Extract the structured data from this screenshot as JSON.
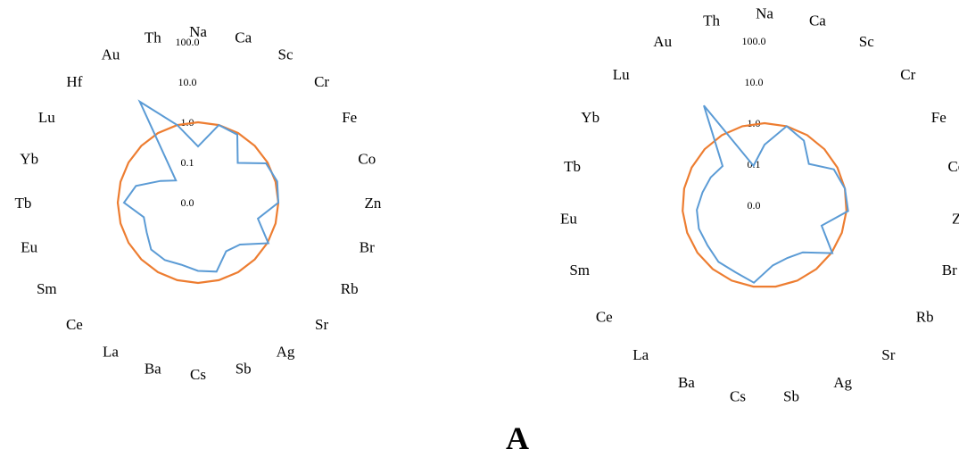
{
  "panel_label": "A",
  "colors": {
    "series_sample": "#5B9BD5",
    "series_reference": "#ED7D31"
  },
  "chart_data": [
    {
      "type": "radar",
      "scale": "log",
      "rlim": [
        0.01,
        100.0
      ],
      "tick_labels": [
        "0.0",
        "0.1",
        "1.0",
        "10.0",
        "100.0"
      ],
      "tick_values": [
        0.01,
        0.1,
        1.0,
        10.0,
        100.0
      ],
      "categories": [
        "Na",
        "Ca",
        "Sc",
        "Cr",
        "Fe",
        "Co",
        "Zn",
        "Br",
        "Rb",
        "Sr",
        "Ag",
        "Sb",
        "Cs",
        "Ba",
        "La",
        "Ce",
        "Sm",
        "Eu",
        "Tb",
        "Yb",
        "Lu",
        "Hf",
        "Au",
        "Th"
      ],
      "series": [
        {
          "values": [
            0.25,
            1.0,
            0.9,
            0.25,
            0.9,
            1.1,
            1.0,
            0.35,
            1.05,
            0.3,
            0.25,
            0.6,
            0.5,
            0.4,
            0.45,
            0.45,
            0.3,
            0.25,
            0.7,
            0.4,
            0.12,
            0.06,
            8.0,
            1.0
          ]
        },
        {
          "values": [
            1.0,
            1.0,
            1.0,
            1.0,
            1.0,
            1.0,
            1.0,
            1.0,
            1.0,
            1.0,
            1.0,
            1.0,
            1.0,
            1.0,
            1.0,
            1.0,
            1.0,
            1.0,
            1.0,
            1.0,
            1.0,
            1.0,
            1.0,
            1.0
          ]
        }
      ]
    },
    {
      "type": "radar",
      "scale": "log",
      "rlim": [
        0.01,
        100.0
      ],
      "tick_labels": [
        "0.0",
        "0.1",
        "1.0",
        "10.0",
        "100.0"
      ],
      "tick_values": [
        0.01,
        0.1,
        1.0,
        10.0,
        100.0
      ],
      "categories": [
        "Na",
        "Ca",
        "Sc",
        "Cr",
        "Fe",
        "Co",
        "Zn",
        "Br",
        "Rb",
        "Sr",
        "Ag",
        "Sb",
        "Cs",
        "Ba",
        "La",
        "Ce",
        "Sm",
        "Eu",
        "Tb",
        "Yb",
        "Lu",
        "Au",
        "Th"
      ],
      "series": [
        {
          "values": [
            0.3,
            1.0,
            0.7,
            0.3,
            0.8,
            1.0,
            1.1,
            0.3,
            1.05,
            0.3,
            0.25,
            0.3,
            0.8,
            0.6,
            0.6,
            0.5,
            0.5,
            0.45,
            0.35,
            0.3,
            0.25,
            7.0,
            0.1
          ]
        },
        {
          "values": [
            1.0,
            1.0,
            1.0,
            1.0,
            1.0,
            1.0,
            1.0,
            1.0,
            1.0,
            1.0,
            1.0,
            1.0,
            1.0,
            1.0,
            1.0,
            1.0,
            1.0,
            1.0,
            1.0,
            1.0,
            1.0,
            1.0,
            1.0
          ]
        }
      ]
    }
  ]
}
